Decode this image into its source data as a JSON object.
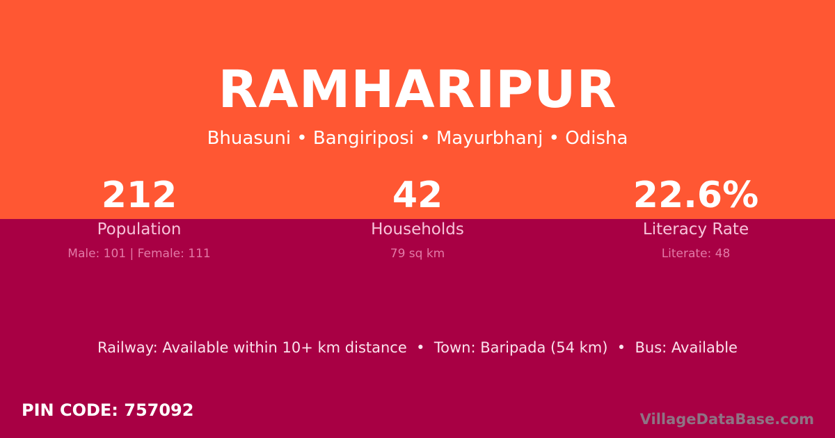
{
  "village": {
    "name": "RAMHARIPUR",
    "location": "Bhuasuni • Bangiriposi • Mayurbhanj • Odisha"
  },
  "stats": [
    {
      "value": "212",
      "label": "Population",
      "detail": "Male: 101 | Female: 111"
    },
    {
      "value": "42",
      "label": "Households",
      "detail": "79 sq km"
    },
    {
      "value": "22.6%",
      "label": "Literacy Rate",
      "detail": "Literate: 48"
    }
  ],
  "access": "Railway: Available within 10+ km distance  •  Town: Baripada (54 km)  •  Bus: Available",
  "pin_code": "PIN CODE: 757092",
  "watermark": "VillageDataBase.com",
  "colors": {
    "top_background": "#ff5733",
    "bottom_background": "#a80044"
  }
}
